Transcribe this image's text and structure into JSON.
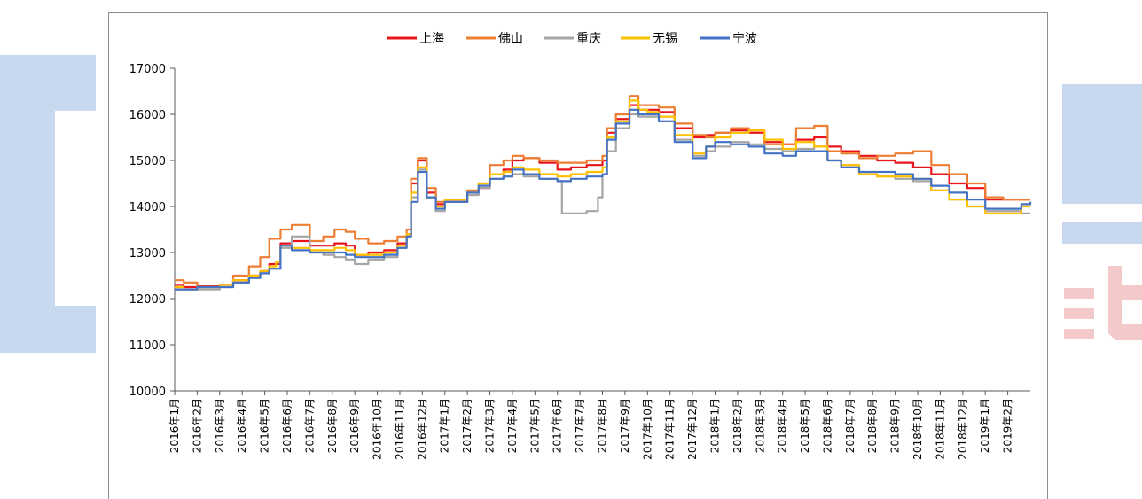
{
  "chart_data": {
    "type": "line",
    "title": "",
    "xlabel": "",
    "ylabel": "",
    "ylim": [
      10000,
      17000
    ],
    "yticks": [
      10000,
      11000,
      12000,
      13000,
      14000,
      15000,
      16000,
      17000
    ],
    "xlim": [
      0,
      38
    ],
    "categories": [
      "2016年1月",
      "2016年2月",
      "2016年3月",
      "2016年4月",
      "2016年5月",
      "2016年6月",
      "2016年7月",
      "2016年8月",
      "2016年9月",
      "2016年10月",
      "2016年11月",
      "2016年12月",
      "2017年1月",
      "2017年2月",
      "2017年3月",
      "2017年4月",
      "2017年5月",
      "2017年6月",
      "2017年7月",
      "2017年8月",
      "2017年9月",
      "2017年10月",
      "2017年11月",
      "2017年12月",
      "2018年1月",
      "2018年2月",
      "2018年3月",
      "2018年4月",
      "2018年5月",
      "2018年6月",
      "2018年7月",
      "2018年8月",
      "2018年9月",
      "2018年10月",
      "2018年11月",
      "2018年12月",
      "2019年1月",
      "2019年2月"
    ],
    "legend_position": "top-center",
    "grid": false,
    "series": [
      {
        "name": "上海",
        "color": "#e8141c",
        "x": [
          0,
          0.4,
          1,
          2,
          2.6,
          3.3,
          3.8,
          4.2,
          4.7,
          5.2,
          6,
          6.6,
          7.1,
          7.6,
          8,
          8.6,
          9.3,
          9.9,
          10.3,
          10.5,
          10.8,
          11.2,
          11.6,
          12,
          13,
          13.5,
          14,
          14.6,
          15,
          15.5,
          16.2,
          17,
          17.6,
          18.3,
          19,
          19.2,
          19.6,
          20.2,
          20.6,
          21,
          21.5,
          22.2,
          23,
          23.6,
          24,
          24.7,
          25.5,
          26.2,
          27,
          27.6,
          28.4,
          29,
          29.6,
          30.4,
          31.2,
          32,
          32.8,
          33.6,
          34.4,
          35.2,
          36,
          36.8,
          37.6,
          38
        ],
        "y": [
          12300,
          12250,
          12280,
          12300,
          12400,
          12500,
          12600,
          12750,
          13200,
          13250,
          13150,
          13150,
          13200,
          13150,
          12950,
          13000,
          13050,
          13200,
          13400,
          14500,
          15000,
          14300,
          14050,
          14100,
          14300,
          14400,
          14700,
          14800,
          15000,
          15050,
          14950,
          14800,
          14850,
          14900,
          15000,
          15600,
          15900,
          16200,
          16100,
          16100,
          16050,
          15700,
          15500,
          15550,
          15600,
          15650,
          15600,
          15400,
          15350,
          15450,
          15500,
          15300,
          15200,
          15100,
          15000,
          14950,
          14850,
          14700,
          14500,
          14400,
          14150,
          14150,
          14150,
          14150
        ]
      },
      {
        "name": "佛山",
        "color": "#ed7d31",
        "x": [
          0,
          0.4,
          1,
          2,
          2.6,
          3.3,
          3.8,
          4.2,
          4.7,
          5.2,
          6,
          6.6,
          7.1,
          7.6,
          8,
          8.6,
          9.3,
          9.9,
          10.3,
          10.5,
          10.8,
          11.2,
          11.6,
          12,
          13,
          13.5,
          14,
          14.6,
          15,
          15.5,
          16.2,
          17,
          17.6,
          18.3,
          19,
          19.2,
          19.6,
          20.2,
          20.6,
          21,
          21.5,
          22.2,
          23,
          23.6,
          24,
          24.7,
          25.5,
          26.2,
          27,
          27.6,
          28.4,
          29,
          29.6,
          30.4,
          31.2,
          32,
          32.8,
          33.6,
          34.4,
          35.2,
          36,
          36.8,
          37.6,
          38
        ],
        "y": [
          12400,
          12350,
          12250,
          12300,
          12500,
          12700,
          12900,
          13300,
          13500,
          13600,
          13250,
          13350,
          13500,
          13450,
          13300,
          13200,
          13250,
          13350,
          13500,
          14600,
          15050,
          14400,
          14100,
          14150,
          14350,
          14500,
          14900,
          15000,
          15100,
          15050,
          15000,
          14950,
          14950,
          15000,
          15100,
          15700,
          16000,
          16400,
          16200,
          16200,
          16150,
          15800,
          15550,
          15500,
          15600,
          15700,
          15650,
          15350,
          15350,
          15700,
          15750,
          15200,
          15150,
          15050,
          15100,
          15150,
          15200,
          14900,
          14700,
          14500,
          14200,
          14150,
          14150,
          14150
        ]
      },
      {
        "name": "重庆",
        "color": "#a5a5a5",
        "x": [
          0,
          0.4,
          1,
          2,
          2.6,
          3.3,
          3.8,
          4.2,
          4.7,
          5.2,
          6,
          6.6,
          7.1,
          7.6,
          8,
          8.6,
          9.3,
          9.9,
          10.3,
          10.5,
          10.8,
          11.2,
          11.6,
          12,
          13,
          13.5,
          14,
          14.6,
          15,
          15.5,
          16.2,
          17,
          17.2,
          17.6,
          18.3,
          18.8,
          19,
          19.2,
          19.6,
          20.2,
          20.6,
          21,
          21.5,
          22.2,
          23,
          23.6,
          24,
          24.7,
          25.5,
          26.2,
          27,
          27.6,
          28.4,
          29,
          29.6,
          30.4,
          31.2,
          32,
          32.8,
          33.6,
          34.4,
          35.2,
          36,
          36.8,
          37.6,
          38
        ],
        "y": [
          12200,
          12200,
          12200,
          12250,
          12350,
          12450,
          12550,
          12650,
          13100,
          13350,
          13000,
          12950,
          12900,
          12850,
          12750,
          12850,
          12900,
          13100,
          13350,
          14200,
          14800,
          14200,
          13900,
          14100,
          14250,
          14400,
          14600,
          14650,
          14700,
          14650,
          14600,
          14550,
          13850,
          13850,
          13900,
          14200,
          14700,
          15200,
          15700,
          16000,
          15950,
          15950,
          15850,
          15450,
          15100,
          15200,
          15300,
          15400,
          15350,
          15250,
          15200,
          15250,
          15300,
          15000,
          14900,
          14700,
          14650,
          14600,
          14550,
          14350,
          14150,
          14000,
          13900,
          13900,
          13850,
          13850
        ]
      },
      {
        "name": "无锡",
        "color": "#ffc000",
        "x": [
          0,
          0.4,
          1,
          2,
          2.6,
          3.3,
          3.8,
          4.2,
          4.5,
          4.7,
          5.2,
          6,
          6.6,
          7.1,
          7.6,
          8,
          8.6,
          9.3,
          9.9,
          10.3,
          10.5,
          10.8,
          11.2,
          11.6,
          12,
          13,
          13.5,
          14,
          14.6,
          15,
          15.5,
          16.2,
          17,
          17.6,
          18.3,
          19,
          19.2,
          19.6,
          20.2,
          20.6,
          21,
          21.5,
          22.2,
          23,
          23.6,
          24,
          24.7,
          25.5,
          26.2,
          27,
          27.6,
          28.4,
          29,
          29.6,
          30.4,
          31.2,
          32,
          32.8,
          33.6,
          34.4,
          35.2,
          36,
          36.8,
          37.6,
          38
        ],
        "y": [
          12250,
          12200,
          12250,
          12300,
          12400,
          12500,
          12600,
          12700,
          12800,
          13150,
          13100,
          13050,
          13050,
          13100,
          13050,
          12950,
          12950,
          13000,
          13150,
          13400,
          14300,
          14850,
          14200,
          14000,
          14150,
          14300,
          14500,
          14700,
          14750,
          14850,
          14800,
          14700,
          14650,
          14700,
          14750,
          14850,
          15500,
          15850,
          16300,
          16100,
          16050,
          15950,
          15550,
          15150,
          15300,
          15500,
          15600,
          15650,
          15450,
          15250,
          15400,
          15300,
          15000,
          14900,
          14700,
          14650,
          14650,
          14600,
          14350,
          14150,
          14000,
          13850,
          13850,
          14000,
          14000
        ]
      },
      {
        "name": "宁波",
        "color": "#4472c4",
        "x": [
          0,
          0.4,
          1,
          2,
          2.6,
          3.3,
          3.8,
          4.2,
          4.7,
          5.2,
          6,
          6.6,
          7.1,
          7.6,
          8,
          8.6,
          9.3,
          9.9,
          10.3,
          10.5,
          10.8,
          11.2,
          11.6,
          12,
          13,
          13.5,
          14,
          14.6,
          15,
          15.5,
          16.2,
          17,
          17.6,
          18.3,
          19,
          19.2,
          19.6,
          20.2,
          20.6,
          21,
          21.5,
          22.2,
          23,
          23.6,
          24,
          24.7,
          25.5,
          26.2,
          27,
          27.6,
          28.4,
          29,
          29.6,
          30.4,
          31.2,
          32,
          32.8,
          33.6,
          34.4,
          35.2,
          36,
          36.8,
          37.6,
          38
        ],
        "y": [
          12200,
          12200,
          12250,
          12250,
          12350,
          12450,
          12550,
          12650,
          13150,
          13050,
          13000,
          13000,
          13000,
          12950,
          12900,
          12900,
          12950,
          13100,
          13350,
          14100,
          14750,
          14200,
          13950,
          14100,
          14300,
          14450,
          14600,
          14650,
          14800,
          14700,
          14600,
          14550,
          14600,
          14650,
          14700,
          15450,
          15800,
          16100,
          16000,
          16000,
          15850,
          15400,
          15050,
          15300,
          15400,
          15350,
          15300,
          15150,
          15100,
          15200,
          15200,
          15000,
          14850,
          14750,
          14750,
          14700,
          14600,
          14450,
          14300,
          14150,
          13950,
          13950,
          14050,
          14100
        ]
      }
    ]
  },
  "watermark": {
    "color_blue": "#c8d8ef",
    "color_red": "#f4c9c9"
  }
}
